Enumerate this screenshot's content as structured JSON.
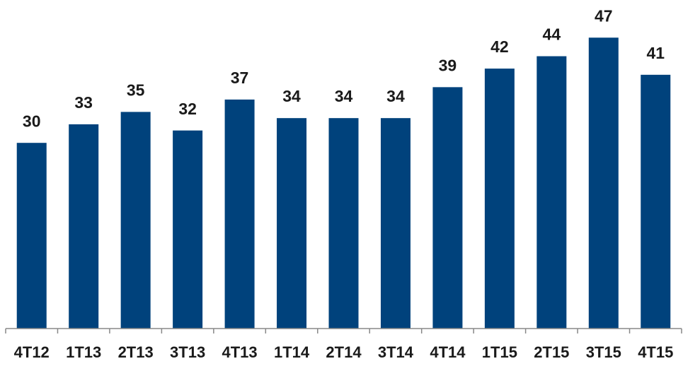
{
  "chart_data": {
    "type": "bar",
    "categories": [
      "4T12",
      "1T13",
      "2T13",
      "3T13",
      "4T13",
      "1T14",
      "2T14",
      "3T14",
      "4T14",
      "1T15",
      "2T15",
      "3T15",
      "4T15"
    ],
    "values": [
      30,
      33,
      35,
      32,
      37,
      34,
      34,
      34,
      39,
      42,
      44,
      47,
      41
    ],
    "color": "#00427c",
    "ylim": [
      0,
      50
    ]
  }
}
